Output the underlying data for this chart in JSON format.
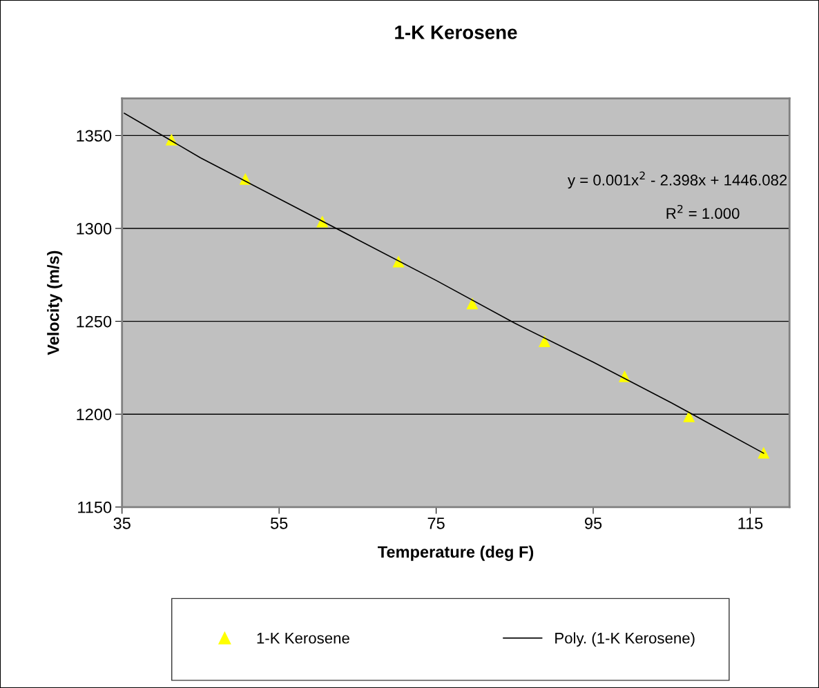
{
  "chart_data": {
    "type": "scatter",
    "title": "1-K Kerosene",
    "xlabel": "Temperature (deg F)",
    "ylabel": "Velocity (m/s)",
    "xlim": [
      35,
      120
    ],
    "xticks": [
      35,
      55,
      75,
      95,
      115
    ],
    "ylim": [
      1150,
      1370
    ],
    "yticks": [
      1150,
      1200,
      1250,
      1300,
      1350
    ],
    "grid": "y",
    "legend": "bottom",
    "marker": "triangle",
    "annotations": [
      "y = 0.001x$^{2}$ - 2.398x + 1446.082",
      "R$^{2}$ = 1.000"
    ],
    "series": [
      {
        "name": "1-K Kerosene",
        "color": "#ffff00",
        "x": [
          41.3,
          50.7,
          60.5,
          70.2,
          79.6,
          88.8,
          99.0,
          107.2,
          116.7
        ],
        "values": [
          1347.8,
          1326.7,
          1303.7,
          1282.2,
          1259.6,
          1239.3,
          1220.4,
          1198.9,
          1179.3
        ]
      },
      {
        "name": "Poly. (1-K Kerosene)",
        "type": "line",
        "color": "#000000",
        "marker": "none",
        "line_style": "solid",
        "x": [
          35.3,
          45,
          55,
          65,
          75,
          85,
          95,
          105,
          116.7
        ],
        "values": [
          1362,
          1338,
          1316,
          1294,
          1272,
          1249,
          1228,
          1206,
          1179
        ]
      }
    ]
  }
}
